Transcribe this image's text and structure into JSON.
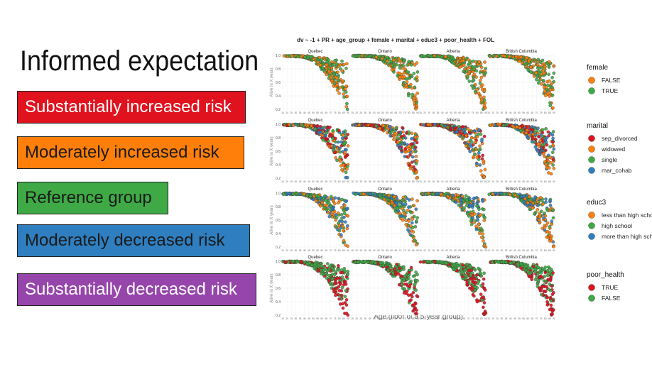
{
  "slide": {
    "title": "Informed expectation",
    "legend_boxes": [
      {
        "label": "Substantially increased risk",
        "bg": "#e0121e",
        "fg": "#ffffff"
      },
      {
        "label": "Moderately increased risk",
        "bg": "#ff7f0a",
        "fg": "#1a1a1a"
      },
      {
        "label": "Reference group",
        "bg": "#3faa45",
        "fg": "#1a1a1a"
      },
      {
        "label": "Moderately decreased risk",
        "bg": "#2f7fc0",
        "fg": "#1a1a1a"
      },
      {
        "label": "Substantially decreased risk",
        "bg": "#9645ab",
        "fg": "#ffffff"
      }
    ]
  },
  "chart_data": {
    "type": "scatter",
    "title": "dv ~ -1 + PR + age_group + female + marital + educ3 + poor_health + FOL",
    "xlabel": "Age (floor of a 5-year group)",
    "ylabel": "Alive in X years",
    "xlim": [
      15,
      90
    ],
    "ylim": [
      0.2,
      1.0
    ],
    "x_ticks": [
      15,
      20,
      25,
      30,
      35,
      40,
      45,
      50,
      55,
      60,
      65,
      70,
      75,
      80,
      85,
      90
    ],
    "y_ticks": [
      0.2,
      0.4,
      0.6,
      0.8,
      1.0
    ],
    "y_tick_labels": [
      "0.2",
      "0.4",
      "0.6",
      "0.8",
      "1.0"
    ],
    "grid": true,
    "facets": [
      "Quebec",
      "Ontario",
      "Alberta",
      "British Columbia"
    ],
    "rows": [
      {
        "variable": "female",
        "legend": [
          {
            "name": "FALSE",
            "color": "#ff7f0a"
          },
          {
            "name": "TRUE",
            "color": "#3faa45"
          }
        ]
      },
      {
        "variable": "marital",
        "legend": [
          {
            "name": "sep_divorced",
            "color": "#e0121e"
          },
          {
            "name": "widowed",
            "color": "#ff7f0a"
          },
          {
            "name": "single",
            "color": "#3faa45"
          },
          {
            "name": "mar_cohab",
            "color": "#2f7fc0"
          }
        ]
      },
      {
        "variable": "educ3",
        "legend": [
          {
            "name": "less than high school",
            "color": "#ff7f0a"
          },
          {
            "name": "high school",
            "color": "#3faa45"
          },
          {
            "name": "more than high school",
            "color": "#2f7fc0"
          }
        ]
      },
      {
        "variable": "poor_health",
        "legend": [
          {
            "name": "TRUE",
            "color": "#e0121e"
          },
          {
            "name": "FALSE",
            "color": "#3faa45"
          }
        ]
      }
    ]
  }
}
